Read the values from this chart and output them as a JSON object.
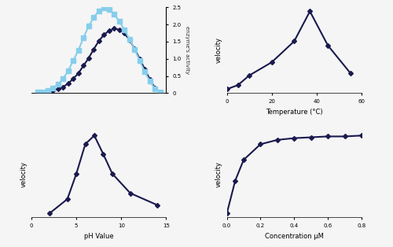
{
  "top_left": {
    "dark_x": [
      1,
      2,
      3,
      4,
      5,
      6,
      7,
      8,
      9,
      10,
      11,
      12,
      13,
      14,
      15,
      16,
      17,
      18,
      19,
      20,
      21,
      22,
      23,
      24,
      25
    ],
    "dark_y": [
      0.02,
      0.03,
      0.05,
      0.08,
      0.12,
      0.18,
      0.28,
      0.42,
      0.58,
      0.8,
      1.02,
      1.28,
      1.52,
      1.7,
      1.82,
      1.88,
      1.85,
      1.75,
      1.55,
      1.3,
      1.0,
      0.7,
      0.4,
      0.15,
      0.02
    ],
    "light_x": [
      1,
      2,
      3,
      4,
      5,
      6,
      7,
      8,
      9,
      10,
      11,
      12,
      13,
      14,
      15,
      16,
      17,
      18,
      19,
      20,
      21,
      22,
      23,
      24,
      25
    ],
    "light_y": [
      0.02,
      0.04,
      0.08,
      0.15,
      0.25,
      0.42,
      0.65,
      0.95,
      1.25,
      1.62,
      1.95,
      2.2,
      2.4,
      2.48,
      2.45,
      2.3,
      2.1,
      1.85,
      1.58,
      1.28,
      0.95,
      0.62,
      0.35,
      0.12,
      0.02
    ],
    "dark_color": "#1a1a4e",
    "light_color": "#87ceeb",
    "ylabel": "enzyme's activity",
    "ylim": [
      0,
      2.5
    ],
    "yticks": [
      0,
      0.5,
      1.0,
      1.5,
      2.0,
      2.5
    ]
  },
  "top_right": {
    "x": [
      0,
      5,
      10,
      20,
      30,
      37,
      45,
      55
    ],
    "y": [
      0.35,
      0.42,
      0.58,
      0.8,
      1.15,
      1.65,
      1.08,
      0.62
    ],
    "color": "#1a1a4e",
    "xlabel": "Temperature (°C)",
    "ylabel": "velocity",
    "xlim": [
      0,
      60
    ],
    "xticks": [
      0,
      20,
      40,
      60
    ]
  },
  "bottom_left": {
    "x": [
      2,
      4,
      5,
      6,
      7,
      8,
      9,
      11,
      14
    ],
    "y": [
      0.08,
      0.25,
      0.55,
      0.9,
      1.0,
      0.78,
      0.55,
      0.32,
      0.18
    ],
    "color": "#1a1a4e",
    "xlabel": "pH Value",
    "ylabel": "velocity",
    "xlim": [
      0,
      15
    ],
    "xticks": [
      0,
      5,
      10,
      15
    ]
  },
  "bottom_right": {
    "x": [
      0.0,
      0.05,
      0.1,
      0.2,
      0.3,
      0.4,
      0.5,
      0.6,
      0.7,
      0.8
    ],
    "y": [
      0.1,
      0.48,
      0.72,
      0.9,
      0.95,
      0.97,
      0.98,
      0.99,
      0.99,
      1.0
    ],
    "color": "#1a1a4e",
    "xlabel": "Concentration μM",
    "ylabel": "velocity",
    "xlim": [
      0,
      0.8
    ],
    "xticks": [
      0,
      0.2,
      0.4,
      0.6,
      0.8
    ]
  },
  "background_color": "#f5f5f5",
  "marker": "D",
  "marker_light": "s",
  "linewidth": 1.5,
  "markersize": 4
}
